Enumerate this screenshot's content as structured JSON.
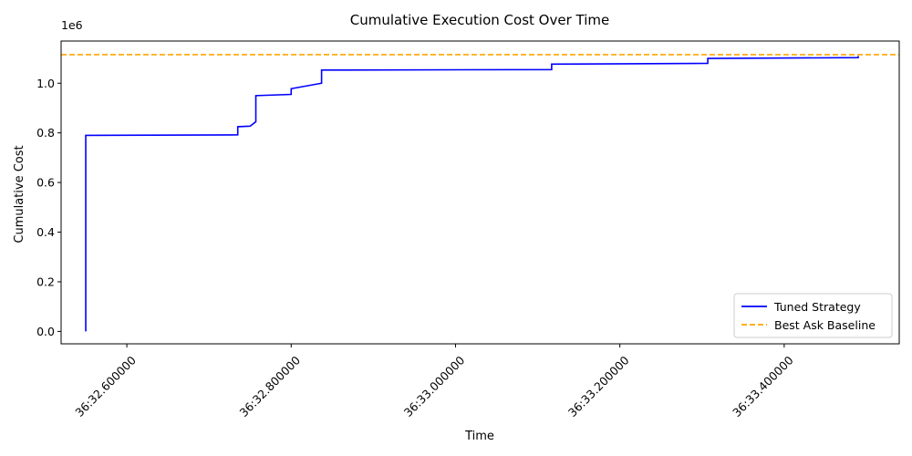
{
  "chart_data": {
    "type": "line",
    "title": "Cumulative Execution Cost Over Time",
    "xlabel": "Time",
    "ylabel": "Cumulative Cost",
    "y_offset_text": "1e6",
    "xlim": [
      "36:32.520000",
      "36:33.540000"
    ],
    "ylim": [
      -0.05,
      1.17
    ],
    "y_scale_note": "values in units of 1e6",
    "x_ticks": [
      "36:32.600000",
      "36:32.800000",
      "36:33.000000",
      "36:33.200000",
      "36:33.400000"
    ],
    "y_ticks": [
      "0.0",
      "0.2",
      "0.4",
      "0.6",
      "0.8",
      "1.0"
    ],
    "grid": false,
    "legend_position": "lower right",
    "series": [
      {
        "name": "Tuned Strategy",
        "color": "#0000ff",
        "style": "solid",
        "points": [
          {
            "x": "36:32.550000",
            "y": 0.0
          },
          {
            "x": "36:32.550000",
            "y": 0.79
          },
          {
            "x": "36:32.735000",
            "y": 0.792
          },
          {
            "x": "36:32.735000",
            "y": 0.825
          },
          {
            "x": "36:32.750000",
            "y": 0.827
          },
          {
            "x": "36:32.757000",
            "y": 0.845
          },
          {
            "x": "36:32.757000",
            "y": 0.95
          },
          {
            "x": "36:32.800000",
            "y": 0.955
          },
          {
            "x": "36:32.800000",
            "y": 0.978
          },
          {
            "x": "36:32.837000",
            "y": 1.0
          },
          {
            "x": "36:32.837000",
            "y": 1.053
          },
          {
            "x": "36:33.117000",
            "y": 1.055
          },
          {
            "x": "36:33.117000",
            "y": 1.077
          },
          {
            "x": "36:33.307000",
            "y": 1.08
          },
          {
            "x": "36:33.307000",
            "y": 1.1
          },
          {
            "x": "36:33.490000",
            "y": 1.103
          },
          {
            "x": "36:33.490000",
            "y": 1.11
          }
        ]
      },
      {
        "name": "Best Ask Baseline",
        "color": "#ffa500",
        "style": "dashed",
        "y_constant": 1.115
      }
    ]
  }
}
